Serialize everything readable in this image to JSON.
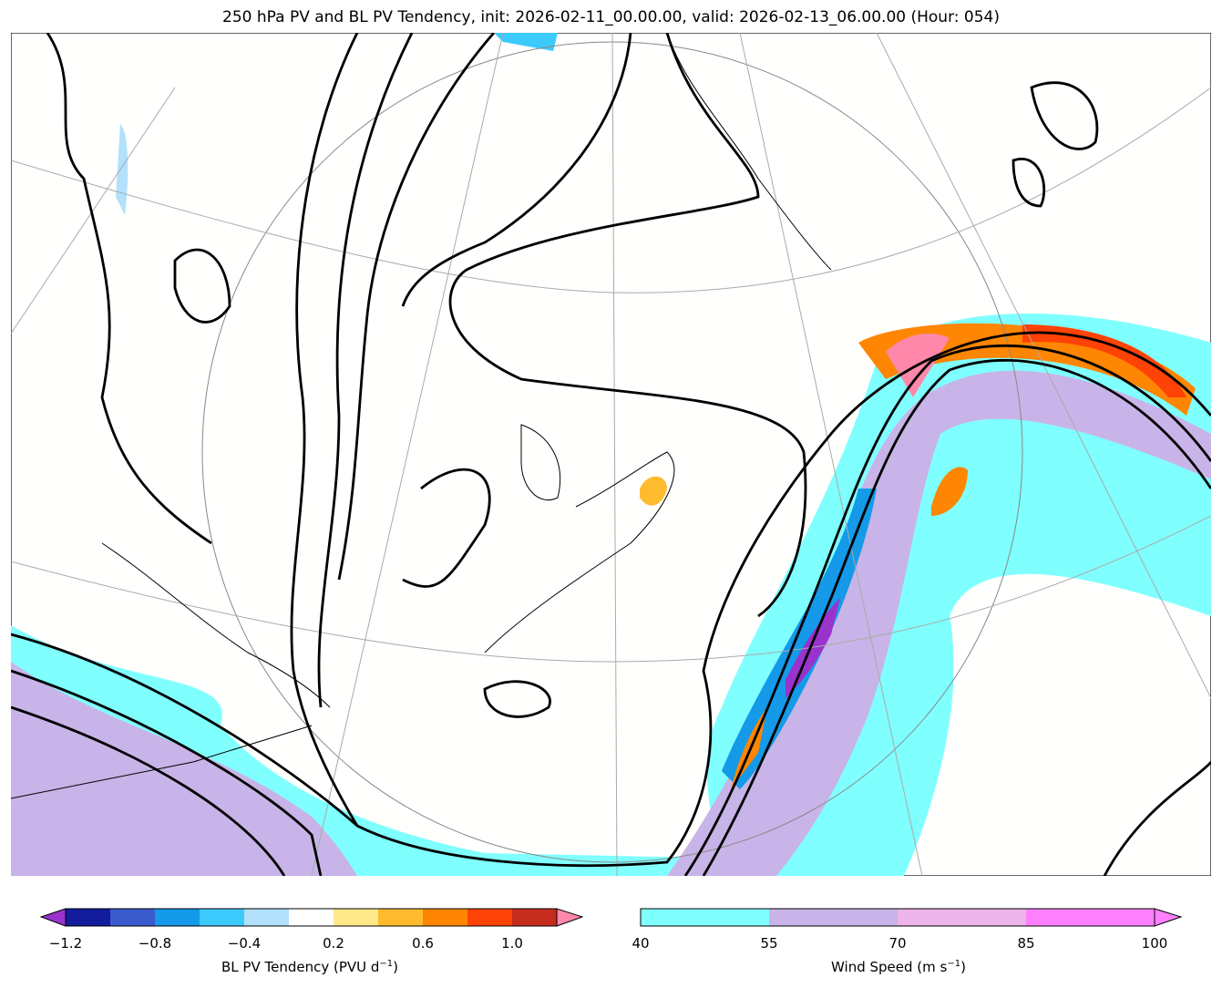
{
  "title": "250 hPa PV and BL PV Tendency, init: 2026-02-11_00.00.00, valid: 2026-02-13_06.00.00 (Hour: 054)",
  "colorbars": {
    "pv_tendency": {
      "label": "BL PV Tendency (PVU d",
      "label_sup": "−1",
      "label_end": ")",
      "levels": [
        -1.2,
        -1.0,
        -0.8,
        -0.6,
        -0.4,
        -0.2,
        0.2,
        0.4,
        0.6,
        0.8,
        1.0,
        1.2
      ],
      "colors": [
        "#121c9c",
        "#3a5bcc",
        "#149ae8",
        "#3ccafd",
        "#b3e1fc",
        "#ffffff",
        "#ffe98a",
        "#ffbb2e",
        "#ff8602",
        "#ff4205",
        "#c62c1e"
      ],
      "under_color": "#9933cc",
      "over_color": "#ff88aa",
      "tick_labels": [
        "−1.2",
        "−0.8",
        "−0.4",
        "0.2",
        "0.6",
        "1.0"
      ]
    },
    "wind_speed": {
      "label": "Wind Speed (m s",
      "label_sup": "−1",
      "label_end": ")",
      "levels": [
        40,
        55,
        70,
        85,
        100
      ],
      "colors": [
        "#80ffff",
        "#c8b4e8",
        "#ecb4e8",
        "#ff80ff"
      ],
      "over_color": "#ff80ff",
      "tick_labels": [
        "40",
        "55",
        "70",
        "85",
        "100"
      ]
    }
  }
}
